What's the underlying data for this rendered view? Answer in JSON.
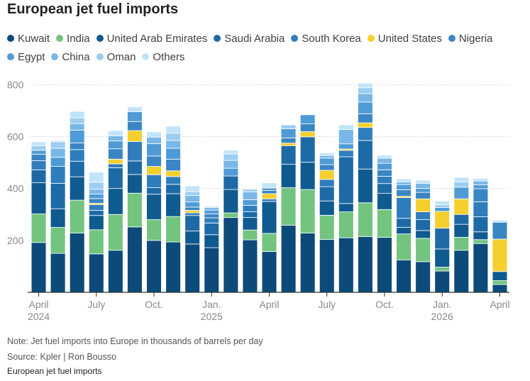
{
  "title": "European jet fuel imports",
  "note": "Note: Jet fuel imports into Europe in thousands of barrels per day",
  "source": "Source: Kpler | Ron Bousso",
  "caption": "European jet fuel imports",
  "chart_data": {
    "type": "bar",
    "stacked": true,
    "title": "European jet fuel imports",
    "xlabel": "",
    "ylabel": "",
    "ylim": [
      0,
      820
    ],
    "yticks": [
      200,
      400,
      600,
      800
    ],
    "grid": true,
    "legend_position": "top",
    "unit": "thousands of barrels per day",
    "categories": [
      "Apr 2024",
      "May 2024",
      "Jun 2024",
      "Jul 2024",
      "Aug 2024",
      "Sep 2024",
      "Oct 2024",
      "Nov 2024",
      "Dec 2024",
      "Jan 2025",
      "Feb 2025",
      "Mar 2025",
      "Apr 2025",
      "May 2025",
      "Jun 2025",
      "Jul 2025",
      "Aug 2025",
      "Sep 2025",
      "Oct 2025",
      "Nov 2025",
      "Dec 2025",
      "Jan 2026",
      "Feb 2026",
      "Mar 2026",
      "Apr 2026"
    ],
    "tick_labels": [
      {
        "index": 0,
        "lines": [
          "April",
          "2024"
        ]
      },
      {
        "index": 3,
        "lines": [
          "July"
        ]
      },
      {
        "index": 6,
        "lines": [
          "Oct."
        ]
      },
      {
        "index": 9,
        "lines": [
          "Jan.",
          "2025"
        ]
      },
      {
        "index": 12,
        "lines": [
          "April"
        ]
      },
      {
        "index": 15,
        "lines": [
          "July"
        ]
      },
      {
        "index": 18,
        "lines": [
          "Oct."
        ]
      },
      {
        "index": 21,
        "lines": [
          "Jan.",
          "2026"
        ]
      },
      {
        "index": 24,
        "lines": [
          "April"
        ]
      }
    ],
    "series": [
      {
        "name": "Kuwait",
        "color": "#0c4a7a",
        "values": [
          192,
          150,
          228,
          148,
          162,
          252,
          200,
          194,
          186,
          172,
          288,
          202,
          157,
          258,
          228,
          204,
          210,
          215,
          212,
          125,
          118,
          82,
          162,
          188,
          30
        ]
      },
      {
        "name": "India",
        "color": "#72c47e",
        "values": [
          110,
          100,
          127,
          93,
          138,
          130,
          80,
          98,
          0,
          0,
          18,
          38,
          70,
          145,
          168,
          93,
          100,
          130,
          107,
          100,
          90,
          15,
          50,
          15,
          15
        ]
      },
      {
        "name": "United Arab Emirates",
        "color": "#0f5a8f",
        "values": [
          120,
          72,
          90,
          55,
          100,
          72,
          98,
          88,
          50,
          50,
          90,
          48,
          123,
          90,
          105,
          55,
          32,
          130,
          62,
          25,
          30,
          70,
          50,
          30,
          35
        ]
      },
      {
        "name": "Saudi Arabia",
        "color": "#1d6aa6",
        "values": [
          50,
          98,
          60,
          20,
          80,
          52,
          25,
          36,
          60,
          45,
          52,
          22,
          0,
          72,
          98,
          55,
          180,
          110,
          38,
          35,
          42,
          80,
          38,
          58,
          0
        ]
      },
      {
        "name": "South Korea",
        "color": "#2f7dbd",
        "values": [
          35,
          65,
          45,
          22,
          15,
          75,
          50,
          30,
          10,
          20,
          0,
          25,
          10,
          0,
          0,
          28,
          25,
          50,
          28,
          80,
          30,
          0,
          0,
          58,
          0
        ]
      },
      {
        "name": "United States",
        "color": "#f4cf2e",
        "values": [
          0,
          0,
          0,
          5,
          18,
          42,
          32,
          22,
          10,
          0,
          0,
          0,
          20,
          10,
          20,
          35,
          5,
          18,
          0,
          5,
          50,
          65,
          60,
          0,
          125
        ]
      },
      {
        "name": "Nigeria",
        "color": "#3a85c3",
        "values": [
          25,
          0,
          25,
          18,
          40,
          35,
          40,
          45,
          12,
          15,
          0,
          0,
          12,
          20,
          30,
          22,
          0,
          35,
          25,
          25,
          25,
          0,
          0,
          50,
          65
        ]
      },
      {
        "name": "Egypt",
        "color": "#4f9bd6",
        "values": [
          15,
          35,
          50,
          18,
          30,
          38,
          48,
          42,
          20,
          15,
          30,
          22,
          10,
          35,
          35,
          25,
          20,
          45,
          25,
          20,
          15,
          15,
          45,
          15,
          0
        ]
      },
      {
        "name": "China",
        "color": "#78b7e8",
        "values": [
          0,
          35,
          25,
          18,
          20,
          0,
          25,
          30,
          25,
          10,
          30,
          30,
          0,
          0,
          0,
          10,
          55,
          32,
          20,
          10,
          20,
          0,
          0,
          15,
          0
        ]
      },
      {
        "name": "Oman",
        "color": "#9ccdf2",
        "values": [
          18,
          25,
          22,
          27,
          0,
          0,
          0,
          28,
          15,
          0,
          25,
          10,
          0,
          15,
          0,
          0,
          0,
          23,
          0,
          0,
          0,
          10,
          20,
          0,
          0
        ]
      },
      {
        "name": "Others",
        "color": "#c2e4fa",
        "values": [
          15,
          5,
          25,
          39,
          20,
          19,
          20,
          27,
          22,
          5,
          15,
          0,
          20,
          0,
          0,
          10,
          18,
          18,
          11,
          12,
          12,
          15,
          18,
          10,
          8
        ]
      }
    ]
  }
}
